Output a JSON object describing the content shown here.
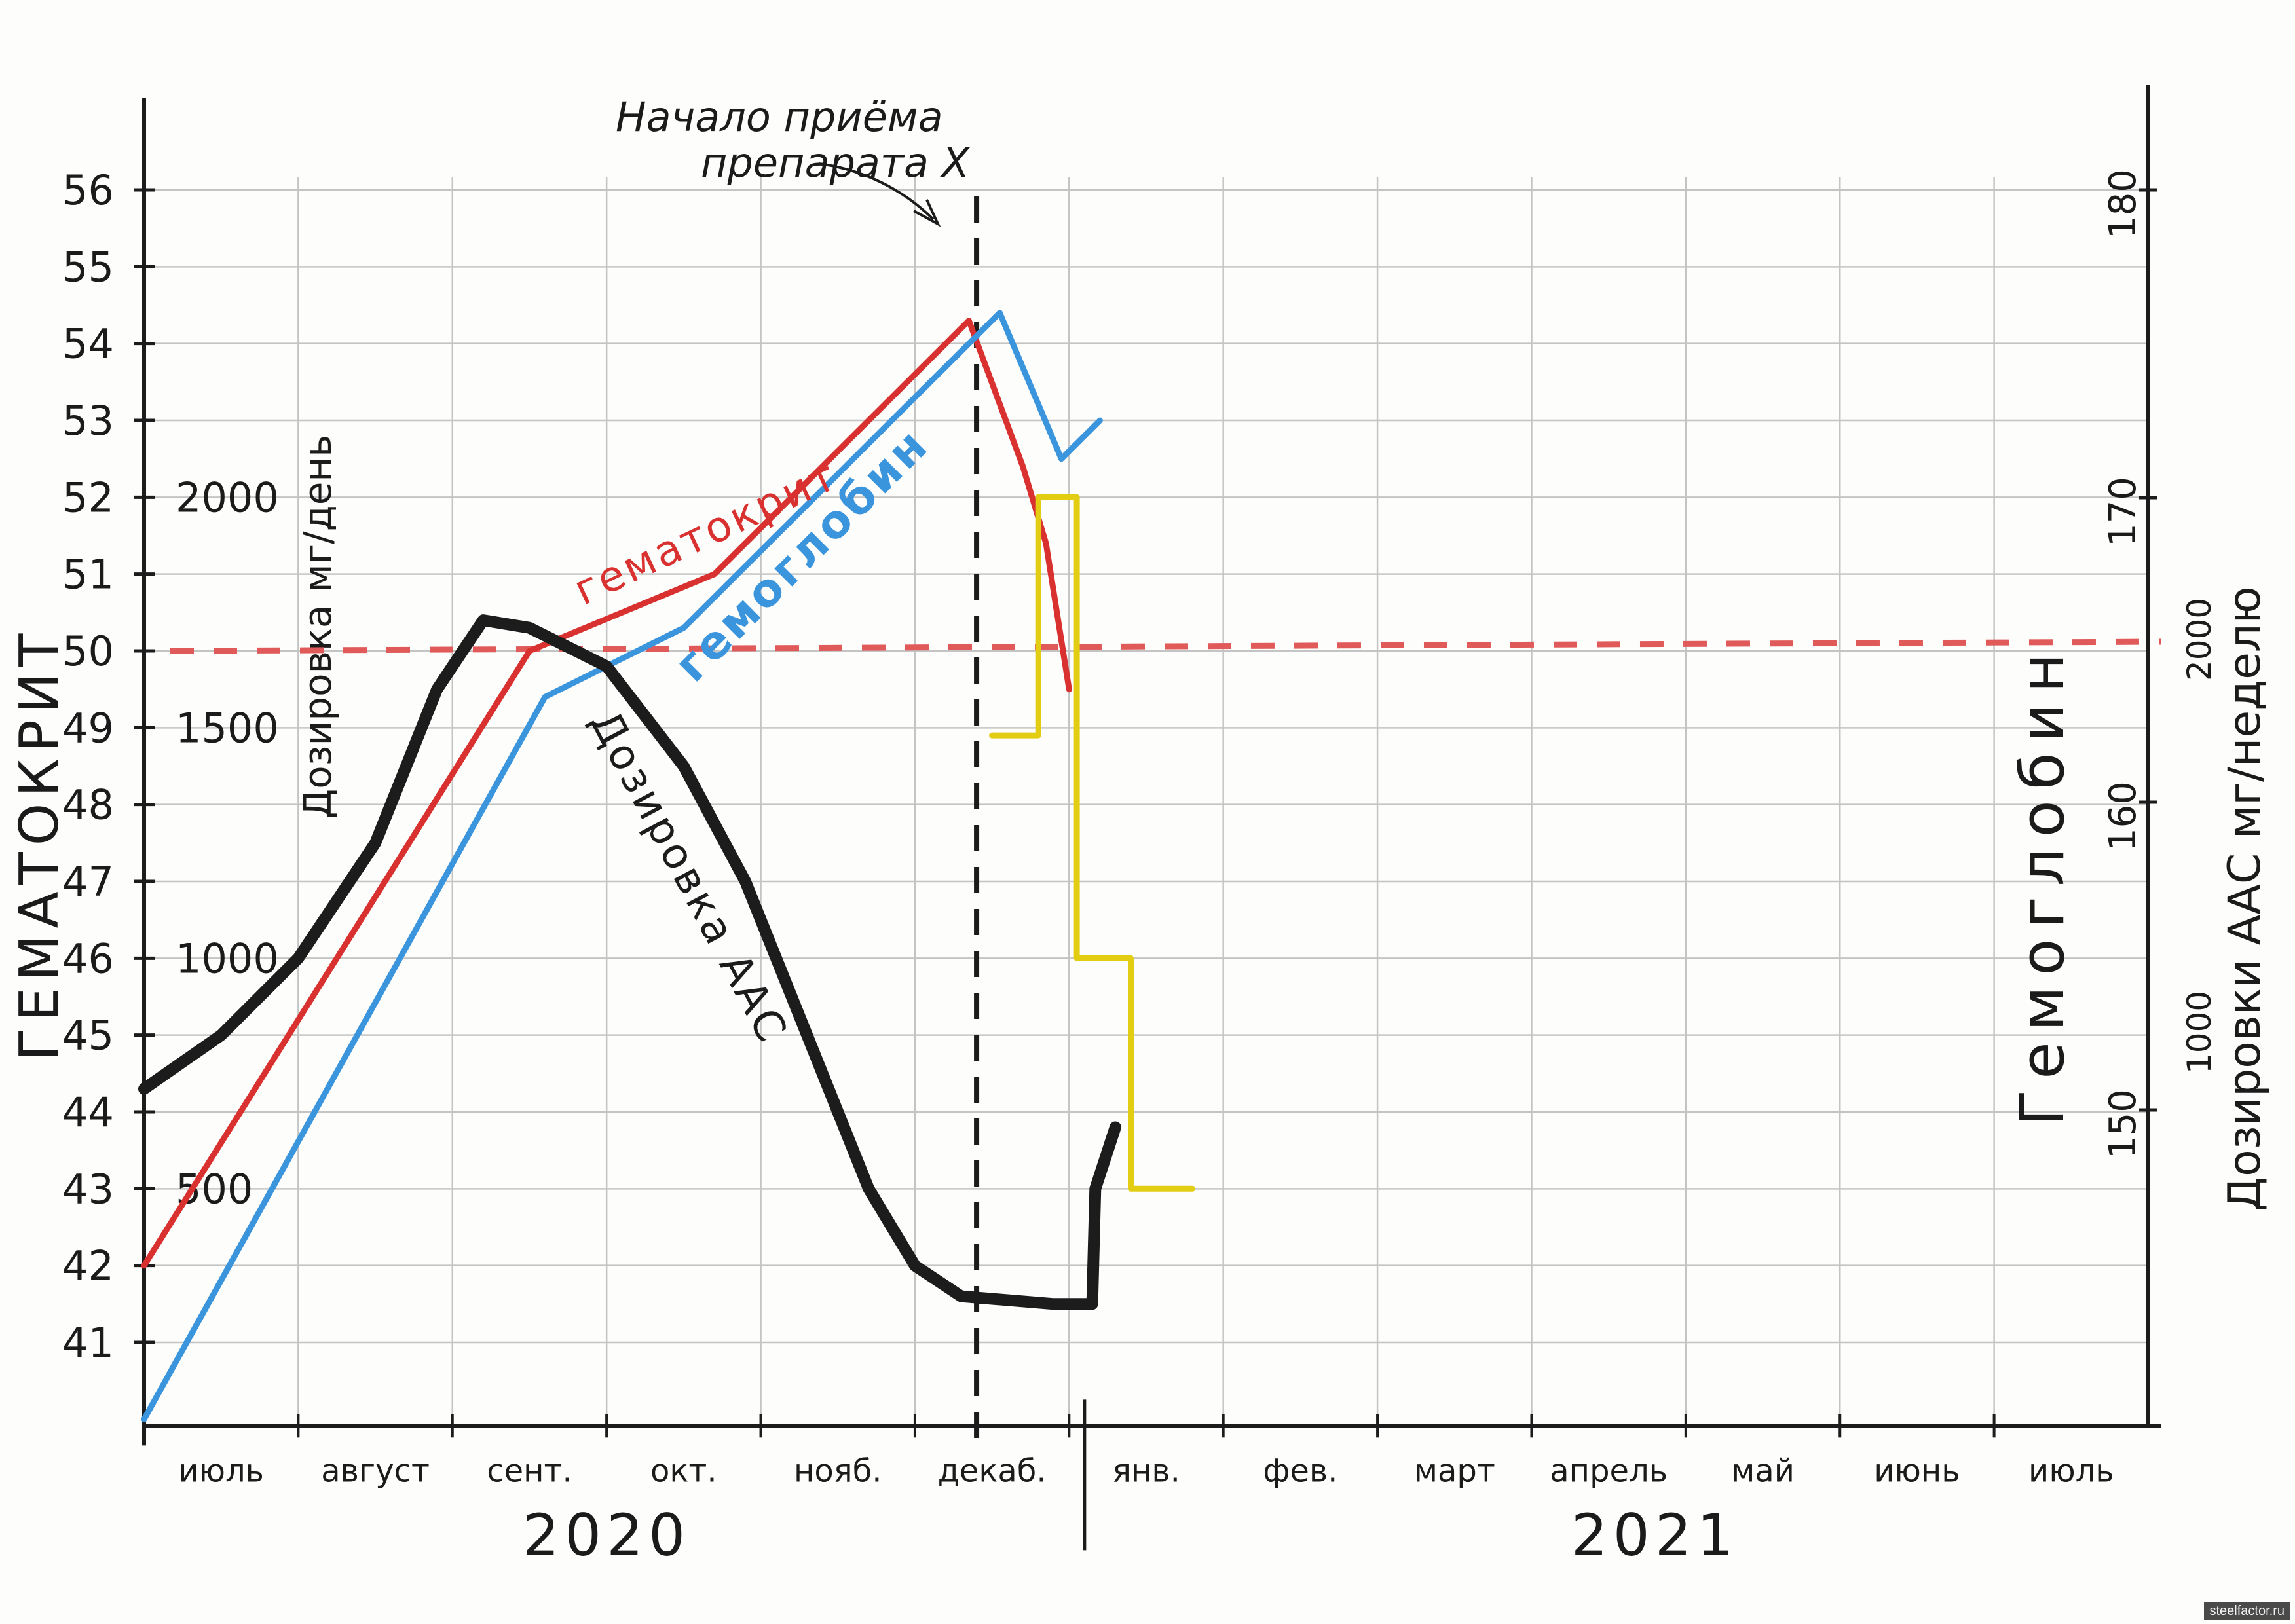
{
  "chart_data": {
    "type": "line",
    "annotation": "Начало приёма\nпрепарата X",
    "axes": {
      "left_primary": {
        "label": "ГЕМАТОКРИТ",
        "ticks": [
          41,
          42,
          43,
          44,
          45,
          46,
          47,
          48,
          49,
          50,
          51,
          52,
          53,
          54,
          55,
          56
        ]
      },
      "left_secondary": {
        "label": "Дозировка мг/день",
        "tick_labels": [
          "500",
          "1000",
          "1500",
          "2000"
        ],
        "tick_values": [
          500,
          1000,
          1500,
          2000
        ],
        "at_hematocrit": [
          43,
          46,
          49,
          52
        ]
      },
      "right_primary": {
        "label": "Гемоглобин",
        "tick_labels": [
          "150",
          "160",
          "170",
          "180"
        ],
        "tick_values": [
          150,
          160,
          170,
          180
        ]
      },
      "right_secondary": {
        "label": "Дозировки ААС мг/неделю",
        "tick_labels": [
          "1000",
          "2000"
        ],
        "tick_values": [
          1000,
          2000
        ]
      }
    },
    "x_months": [
      "июль",
      "август",
      "сент.",
      "окт.",
      "нояб.",
      "декаб.",
      "янв.",
      "фев.",
      "март",
      "апрель",
      "май",
      "июнь",
      "июль"
    ],
    "years": [
      "2020",
      "2021"
    ],
    "reference_line": {
      "hematocrit": 50,
      "color": "#e05a5a",
      "style": "dashed"
    },
    "drug_start_month_index": 5.4,
    "series": [
      {
        "name": "гематокрит",
        "color": "#d93030",
        "axis": "hematocrit",
        "points": [
          [
            0,
            42
          ],
          [
            2.5,
            50
          ],
          [
            3.7,
            51
          ],
          [
            5.35,
            54.3
          ],
          [
            5.7,
            52.4
          ],
          [
            5.85,
            51.4
          ],
          [
            6,
            49.5
          ]
        ]
      },
      {
        "name": "гемоглобин",
        "color": "#3b95dd",
        "axis": "hematocrit",
        "points": [
          [
            0,
            40
          ],
          [
            2.6,
            49.4
          ],
          [
            3.5,
            50.3
          ],
          [
            5.55,
            54.4
          ],
          [
            5.95,
            52.5
          ],
          [
            6.2,
            53
          ]
        ]
      },
      {
        "name": "Дозировка ААС",
        "color": "#1c1c1c",
        "axis": "hematocrit",
        "points": [
          [
            0,
            44.3
          ],
          [
            0.5,
            45
          ],
          [
            1,
            46
          ],
          [
            1.5,
            47.5
          ],
          [
            1.9,
            49.5
          ],
          [
            2.2,
            50.4
          ],
          [
            2.5,
            50.3
          ],
          [
            3,
            49.8
          ],
          [
            3.5,
            48.5
          ],
          [
            3.9,
            47
          ],
          [
            4.3,
            45
          ],
          [
            4.7,
            43
          ],
          [
            5,
            42
          ],
          [
            5.3,
            41.6
          ],
          [
            5.9,
            41.5
          ],
          [
            6.15,
            41.5
          ],
          [
            6.17,
            43
          ],
          [
            6.3,
            43.8
          ]
        ]
      },
      {
        "name": "Дозировки ААС мг/неделю",
        "color": "#e2cd12",
        "axis": "hematocrit",
        "points": [
          [
            5.5,
            48.9
          ],
          [
            5.8,
            48.9
          ],
          [
            5.8,
            52
          ],
          [
            6.05,
            52
          ],
          [
            6.05,
            46
          ],
          [
            6.4,
            46
          ],
          [
            6.4,
            43
          ],
          [
            6.8,
            43
          ]
        ]
      }
    ]
  },
  "watermark": "steelfactor.ru"
}
